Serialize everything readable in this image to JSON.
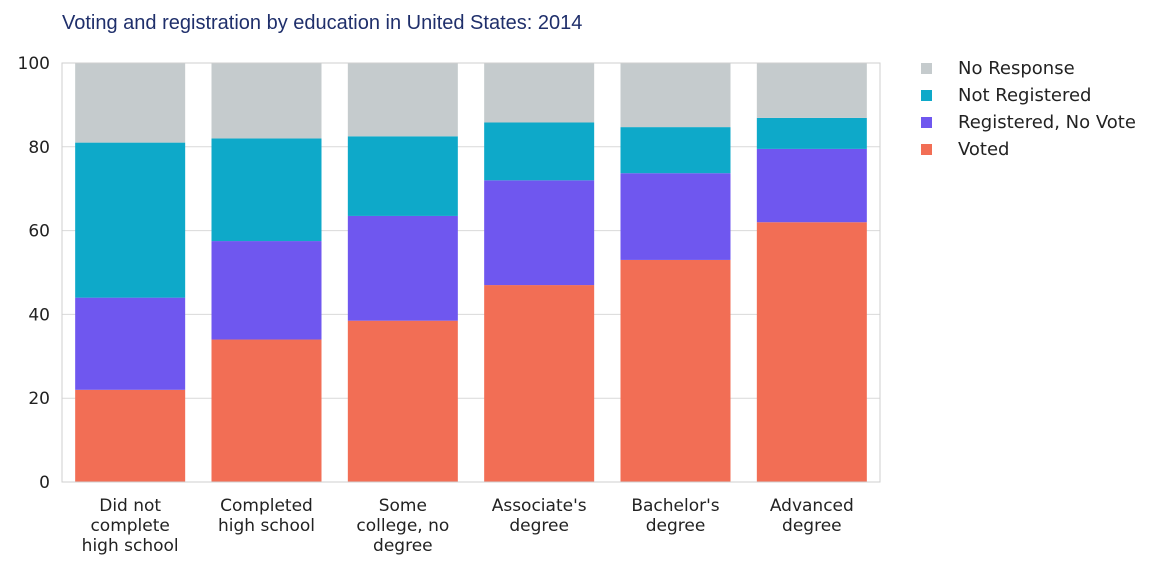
{
  "chart_data": {
    "type": "bar",
    "stacked": true,
    "title": "Voting and registration by education in United States: 2014",
    "xlabel": "",
    "ylabel": "",
    "ylim": [
      0,
      100
    ],
    "yticks": [
      "0",
      "20",
      "40",
      "60",
      "80",
      "100"
    ],
    "grid": true,
    "legend_position": "right",
    "categories": [
      "Did not complete high school",
      "Completed high school",
      "Some college, no degree",
      "Associate's degree",
      "Bachelor's degree",
      "Advanced degree"
    ],
    "category_lines": [
      [
        "Did not",
        "complete",
        "high school"
      ],
      [
        "Completed",
        "high school"
      ],
      [
        "Some",
        "college, no",
        "degree"
      ],
      [
        "Associate's",
        "degree"
      ],
      [
        "Bachelor's",
        "degree"
      ],
      [
        "Advanced",
        "degree"
      ]
    ],
    "series": [
      {
        "name": "Voted",
        "color": "#f26e55",
        "values": [
          22,
          34,
          38.5,
          47,
          53,
          62
        ]
      },
      {
        "name": "Registered, No Vote",
        "color": "#6f57ef",
        "values": [
          22,
          23.5,
          25,
          25,
          20.7,
          17.5
        ]
      },
      {
        "name": "Not Registered",
        "color": "#0ea9c9",
        "values": [
          37,
          24.5,
          19,
          13.8,
          11,
          7.4
        ]
      },
      {
        "name": "No Response",
        "color": "#c5cbcd",
        "values": [
          19,
          18,
          17.5,
          14.2,
          15.3,
          13.1
        ]
      }
    ],
    "legend_order": [
      "No Response",
      "Not Registered",
      "Registered, No Vote",
      "Voted"
    ]
  }
}
